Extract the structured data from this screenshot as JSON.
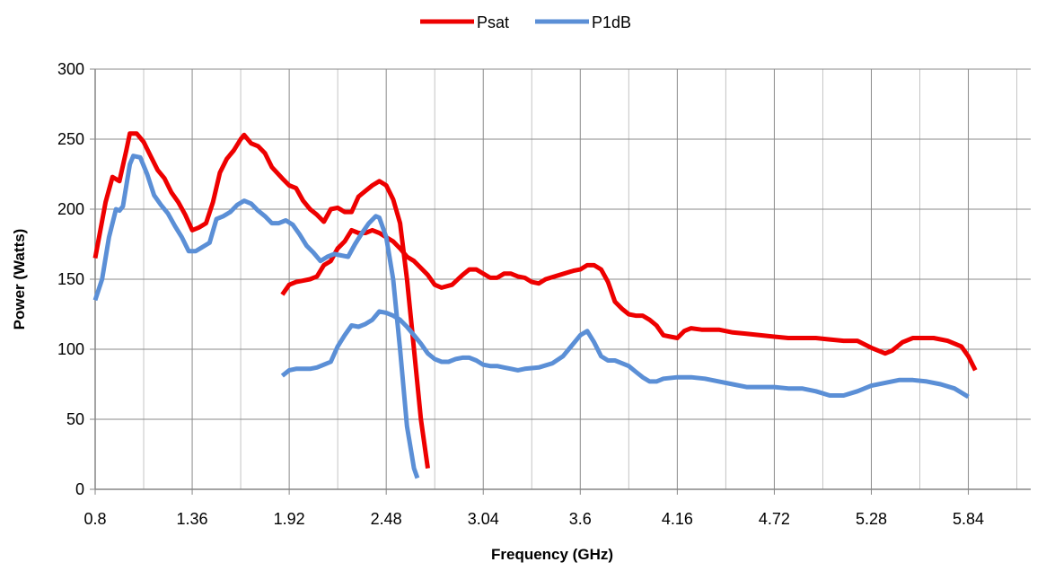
{
  "chart_data": {
    "type": "line",
    "title": "",
    "xlabel": "Frequency (GHz)",
    "ylabel": "Power (Watts)",
    "xlim": [
      0.8,
      6.2
    ],
    "ylim": [
      0,
      300
    ],
    "x_tick_labels": [
      "0.8",
      "1.36",
      "1.92",
      "2.48",
      "3.04",
      "3.6",
      "4.16",
      "4.72",
      "5.28",
      "5.84"
    ],
    "x_tick_values": [
      0.8,
      1.36,
      1.92,
      2.48,
      3.04,
      3.6,
      4.16,
      4.72,
      5.28,
      5.84
    ],
    "y_tick_labels": [
      "0",
      "50",
      "100",
      "150",
      "200",
      "250",
      "300"
    ],
    "y_tick_values": [
      0,
      50,
      100,
      150,
      200,
      250,
      300
    ],
    "grid": true,
    "legend_position": "top-center",
    "series": [
      {
        "name": "Psat",
        "color": "#ee0000",
        "segments": [
          [
            [
              0.8,
              165
            ],
            [
              0.86,
              205
            ],
            [
              0.9,
              223
            ],
            [
              0.94,
              220
            ],
            [
              0.98,
              242
            ],
            [
              1.0,
              254
            ],
            [
              1.04,
              254
            ],
            [
              1.08,
              248
            ],
            [
              1.12,
              238
            ],
            [
              1.16,
              228
            ],
            [
              1.2,
              222
            ],
            [
              1.24,
              212
            ],
            [
              1.28,
              205
            ],
            [
              1.32,
              196
            ],
            [
              1.36,
              185
            ],
            [
              1.4,
              187
            ],
            [
              1.44,
              190
            ],
            [
              1.48,
              205
            ],
            [
              1.52,
              226
            ],
            [
              1.56,
              236
            ],
            [
              1.6,
              242
            ],
            [
              1.64,
              250
            ],
            [
              1.66,
              253
            ],
            [
              1.7,
              247
            ],
            [
              1.74,
              245
            ],
            [
              1.78,
              240
            ],
            [
              1.82,
              230
            ],
            [
              1.88,
              222
            ],
            [
              1.92,
              217
            ],
            [
              1.96,
              215
            ],
            [
              2.0,
              206
            ],
            [
              2.04,
              200
            ],
            [
              2.08,
              196
            ],
            [
              2.12,
              191
            ],
            [
              2.16,
              200
            ],
            [
              2.2,
              201
            ],
            [
              2.24,
              198
            ],
            [
              2.28,
              198
            ],
            [
              2.32,
              209
            ],
            [
              2.36,
              213
            ],
            [
              2.4,
              217
            ],
            [
              2.44,
              220
            ],
            [
              2.48,
              217
            ],
            [
              2.52,
              207
            ],
            [
              2.56,
              190
            ],
            [
              2.6,
              150
            ],
            [
              2.64,
              100
            ],
            [
              2.68,
              50
            ],
            [
              2.72,
              15
            ]
          ],
          [
            [
              1.88,
              139
            ],
            [
              1.92,
              146
            ],
            [
              1.96,
              148
            ],
            [
              2.0,
              149
            ],
            [
              2.04,
              150
            ],
            [
              2.08,
              152
            ],
            [
              2.12,
              160
            ],
            [
              2.16,
              163
            ],
            [
              2.2,
              172
            ],
            [
              2.24,
              177
            ],
            [
              2.28,
              185
            ],
            [
              2.32,
              183
            ],
            [
              2.36,
              183
            ],
            [
              2.4,
              185
            ],
            [
              2.44,
              183
            ],
            [
              2.48,
              180
            ],
            [
              2.52,
              177
            ],
            [
              2.56,
              172
            ],
            [
              2.6,
              166
            ],
            [
              2.64,
              163
            ],
            [
              2.68,
              158
            ],
            [
              2.72,
              153
            ],
            [
              2.76,
              146
            ],
            [
              2.8,
              144
            ],
            [
              2.86,
              146
            ],
            [
              2.92,
              153
            ],
            [
              2.96,
              157
            ],
            [
              3.0,
              157
            ],
            [
              3.04,
              154
            ],
            [
              3.08,
              151
            ],
            [
              3.12,
              151
            ],
            [
              3.16,
              154
            ],
            [
              3.2,
              154
            ],
            [
              3.24,
              152
            ],
            [
              3.28,
              151
            ],
            [
              3.32,
              148
            ],
            [
              3.36,
              147
            ],
            [
              3.4,
              150
            ],
            [
              3.48,
              153
            ],
            [
              3.56,
              156
            ],
            [
              3.6,
              157
            ],
            [
              3.64,
              160
            ],
            [
              3.68,
              160
            ],
            [
              3.72,
              157
            ],
            [
              3.76,
              148
            ],
            [
              3.8,
              134
            ],
            [
              3.84,
              129
            ],
            [
              3.88,
              125
            ],
            [
              3.92,
              124
            ],
            [
              3.96,
              124
            ],
            [
              4.0,
              121
            ],
            [
              4.04,
              117
            ],
            [
              4.08,
              110
            ],
            [
              4.12,
              109
            ],
            [
              4.16,
              108
            ],
            [
              4.2,
              113
            ],
            [
              4.24,
              115
            ],
            [
              4.3,
              114
            ],
            [
              4.36,
              114
            ],
            [
              4.4,
              114
            ],
            [
              4.48,
              112
            ],
            [
              4.56,
              111
            ],
            [
              4.64,
              110
            ],
            [
              4.72,
              109
            ],
            [
              4.8,
              108
            ],
            [
              4.88,
              108
            ],
            [
              4.96,
              108
            ],
            [
              5.04,
              107
            ],
            [
              5.12,
              106
            ],
            [
              5.2,
              106
            ],
            [
              5.28,
              101
            ],
            [
              5.36,
              97
            ],
            [
              5.4,
              99
            ],
            [
              5.46,
              105
            ],
            [
              5.52,
              108
            ],
            [
              5.6,
              108
            ],
            [
              5.64,
              108
            ],
            [
              5.72,
              106
            ],
            [
              5.8,
              102
            ],
            [
              5.84,
              95
            ],
            [
              5.88,
              85
            ]
          ]
        ]
      },
      {
        "name": "P1dB",
        "color": "#5b8fd6",
        "segments": [
          [
            [
              0.8,
              135
            ],
            [
              0.84,
              150
            ],
            [
              0.88,
              180
            ],
            [
              0.92,
              200
            ],
            [
              0.94,
              199
            ],
            [
              0.96,
              202
            ],
            [
              1.0,
              232
            ],
            [
              1.02,
              238
            ],
            [
              1.06,
              237
            ],
            [
              1.1,
              225
            ],
            [
              1.14,
              210
            ],
            [
              1.18,
              203
            ],
            [
              1.22,
              197
            ],
            [
              1.26,
              188
            ],
            [
              1.3,
              180
            ],
            [
              1.34,
              170
            ],
            [
              1.38,
              170
            ],
            [
              1.42,
              173
            ],
            [
              1.46,
              176
            ],
            [
              1.5,
              193
            ],
            [
              1.54,
              195
            ],
            [
              1.58,
              198
            ],
            [
              1.62,
              203
            ],
            [
              1.66,
              206
            ],
            [
              1.7,
              204
            ],
            [
              1.74,
              199
            ],
            [
              1.78,
              195
            ],
            [
              1.82,
              190
            ],
            [
              1.86,
              190
            ],
            [
              1.9,
              192
            ],
            [
              1.94,
              189
            ],
            [
              1.98,
              182
            ],
            [
              2.02,
              174
            ],
            [
              2.06,
              169
            ],
            [
              2.1,
              163
            ],
            [
              2.14,
              166
            ],
            [
              2.18,
              168
            ],
            [
              2.22,
              167
            ],
            [
              2.26,
              166
            ],
            [
              2.3,
              175
            ],
            [
              2.34,
              183
            ],
            [
              2.38,
              190
            ],
            [
              2.42,
              195
            ],
            [
              2.44,
              194
            ],
            [
              2.48,
              180
            ],
            [
              2.52,
              150
            ],
            [
              2.56,
              100
            ],
            [
              2.6,
              45
            ],
            [
              2.64,
              15
            ],
            [
              2.66,
              8
            ]
          ],
          [
            [
              1.88,
              81
            ],
            [
              1.92,
              85
            ],
            [
              1.96,
              86
            ],
            [
              2.0,
              86
            ],
            [
              2.04,
              86
            ],
            [
              2.08,
              87
            ],
            [
              2.12,
              89
            ],
            [
              2.16,
              91
            ],
            [
              2.2,
              102
            ],
            [
              2.24,
              110
            ],
            [
              2.28,
              117
            ],
            [
              2.32,
              116
            ],
            [
              2.36,
              118
            ],
            [
              2.4,
              121
            ],
            [
              2.44,
              127
            ],
            [
              2.48,
              126
            ],
            [
              2.52,
              124
            ],
            [
              2.56,
              121
            ],
            [
              2.6,
              116
            ],
            [
              2.64,
              110
            ],
            [
              2.68,
              104
            ],
            [
              2.72,
              97
            ],
            [
              2.76,
              93
            ],
            [
              2.8,
              91
            ],
            [
              2.84,
              91
            ],
            [
              2.88,
              93
            ],
            [
              2.92,
              94
            ],
            [
              2.96,
              94
            ],
            [
              3.0,
              92
            ],
            [
              3.04,
              89
            ],
            [
              3.08,
              88
            ],
            [
              3.12,
              88
            ],
            [
              3.16,
              87
            ],
            [
              3.2,
              86
            ],
            [
              3.24,
              85
            ],
            [
              3.28,
              86
            ],
            [
              3.36,
              87
            ],
            [
              3.44,
              90
            ],
            [
              3.5,
              95
            ],
            [
              3.56,
              104
            ],
            [
              3.6,
              110
            ],
            [
              3.64,
              113
            ],
            [
              3.68,
              105
            ],
            [
              3.72,
              95
            ],
            [
              3.76,
              92
            ],
            [
              3.8,
              92
            ],
            [
              3.84,
              90
            ],
            [
              3.88,
              88
            ],
            [
              3.92,
              84
            ],
            [
              3.96,
              80
            ],
            [
              4.0,
              77
            ],
            [
              4.04,
              77
            ],
            [
              4.08,
              79
            ],
            [
              4.16,
              80
            ],
            [
              4.24,
              80
            ],
            [
              4.32,
              79
            ],
            [
              4.4,
              77
            ],
            [
              4.48,
              75
            ],
            [
              4.56,
              73
            ],
            [
              4.64,
              73
            ],
            [
              4.72,
              73
            ],
            [
              4.8,
              72
            ],
            [
              4.88,
              72
            ],
            [
              4.96,
              70
            ],
            [
              5.04,
              67
            ],
            [
              5.12,
              67
            ],
            [
              5.2,
              70
            ],
            [
              5.28,
              74
            ],
            [
              5.36,
              76
            ],
            [
              5.44,
              78
            ],
            [
              5.52,
              78
            ],
            [
              5.6,
              77
            ],
            [
              5.68,
              75
            ],
            [
              5.76,
              72
            ],
            [
              5.84,
              66
            ]
          ]
        ]
      }
    ]
  }
}
